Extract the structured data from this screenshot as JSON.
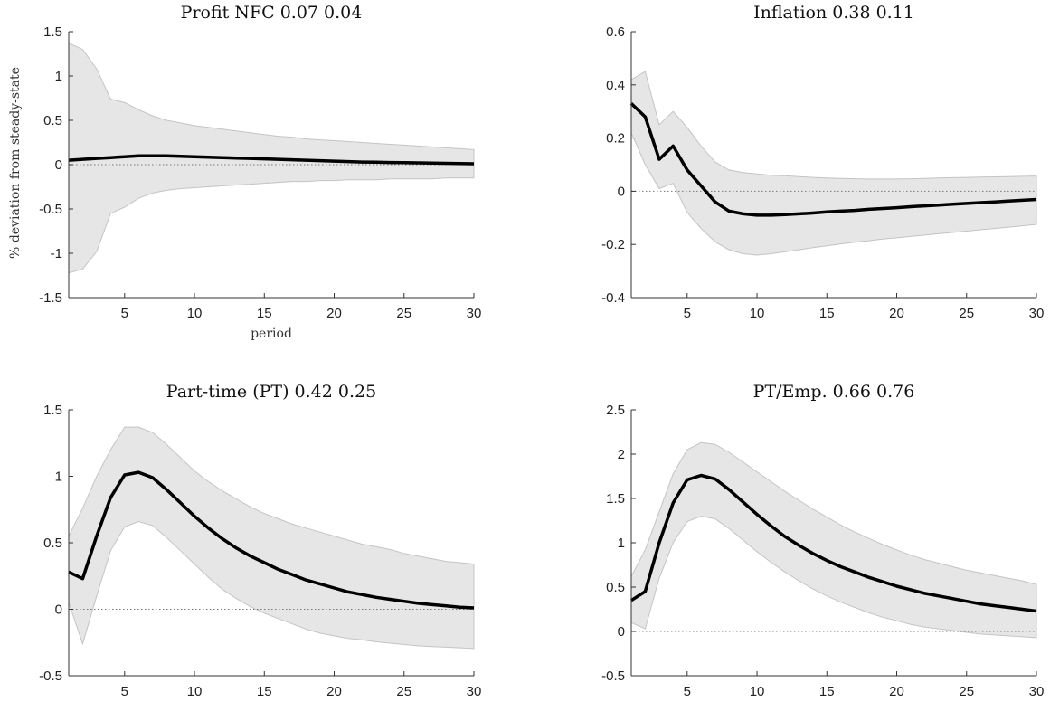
{
  "chart_data": [
    {
      "type": "area",
      "title": "Profit NFC 0.07 0.04",
      "ylabel": "% deviation from steady-state",
      "xlabel": "period",
      "xlim": [
        1,
        30
      ],
      "ylim": [
        -1.5,
        1.5
      ],
      "xticks": [
        5,
        10,
        15,
        20,
        25,
        30
      ],
      "yticks": [
        -1.5,
        -1,
        -0.5,
        0,
        0.5,
        1,
        1.5
      ],
      "xtick_labels": [
        "5",
        "10",
        "15",
        "20",
        "25",
        "30"
      ],
      "ytick_labels": [
        "-1.5",
        "-1",
        "-0.5",
        "0",
        "0.5",
        "1",
        "1.5"
      ],
      "x": [
        1,
        2,
        3,
        4,
        5,
        6,
        7,
        8,
        9,
        10,
        11,
        12,
        13,
        14,
        15,
        16,
        17,
        18,
        19,
        20,
        21,
        22,
        23,
        24,
        25,
        26,
        27,
        28,
        29,
        30
      ],
      "median": [
        0.05,
        0.06,
        0.07,
        0.08,
        0.09,
        0.1,
        0.1,
        0.1,
        0.095,
        0.09,
        0.085,
        0.08,
        0.075,
        0.07,
        0.065,
        0.06,
        0.055,
        0.05,
        0.045,
        0.04,
        0.035,
        0.03,
        0.028,
        0.025,
        0.022,
        0.02,
        0.018,
        0.015,
        0.012,
        0.01
      ],
      "upper": [
        1.37,
        1.3,
        1.08,
        0.74,
        0.7,
        0.62,
        0.55,
        0.5,
        0.47,
        0.44,
        0.42,
        0.4,
        0.38,
        0.36,
        0.34,
        0.32,
        0.31,
        0.29,
        0.28,
        0.27,
        0.26,
        0.25,
        0.24,
        0.23,
        0.22,
        0.21,
        0.2,
        0.19,
        0.18,
        0.17
      ],
      "lower": [
        -1.22,
        -1.18,
        -0.98,
        -0.55,
        -0.48,
        -0.38,
        -0.32,
        -0.29,
        -0.27,
        -0.26,
        -0.25,
        -0.24,
        -0.23,
        -0.22,
        -0.21,
        -0.2,
        -0.19,
        -0.19,
        -0.18,
        -0.18,
        -0.17,
        -0.17,
        -0.17,
        -0.16,
        -0.16,
        -0.16,
        -0.16,
        -0.15,
        -0.15,
        -0.15
      ]
    },
    {
      "type": "area",
      "title": "Inflation 0.38 0.11",
      "ylabel": "",
      "xlabel": "",
      "xlim": [
        1,
        30
      ],
      "ylim": [
        -0.4,
        0.6
      ],
      "xticks": [
        5,
        10,
        15,
        20,
        25,
        30
      ],
      "yticks": [
        -0.4,
        -0.2,
        0,
        0.2,
        0.4,
        0.6
      ],
      "xtick_labels": [
        "5",
        "10",
        "15",
        "20",
        "25",
        "30"
      ],
      "ytick_labels": [
        "-0.4",
        "-0.2",
        "0",
        "0.2",
        "0.4",
        "0.6"
      ],
      "x": [
        1,
        2,
        3,
        4,
        5,
        6,
        7,
        8,
        9,
        10,
        11,
        12,
        13,
        14,
        15,
        16,
        17,
        18,
        19,
        20,
        21,
        22,
        23,
        24,
        25,
        26,
        27,
        28,
        29,
        30
      ],
      "median": [
        0.33,
        0.28,
        0.12,
        0.17,
        0.08,
        0.02,
        -0.04,
        -0.075,
        -0.085,
        -0.09,
        -0.09,
        -0.088,
        -0.085,
        -0.082,
        -0.078,
        -0.075,
        -0.072,
        -0.068,
        -0.065,
        -0.062,
        -0.058,
        -0.055,
        -0.052,
        -0.049,
        -0.046,
        -0.043,
        -0.04,
        -0.037,
        -0.034,
        -0.031
      ],
      "upper": [
        0.42,
        0.45,
        0.25,
        0.3,
        0.24,
        0.17,
        0.11,
        0.08,
        0.07,
        0.065,
        0.06,
        0.058,
        0.055,
        0.052,
        0.05,
        0.048,
        0.047,
        0.046,
        0.046,
        0.046,
        0.047,
        0.048,
        0.05,
        0.051,
        0.052,
        0.053,
        0.054,
        0.055,
        0.056,
        0.057
      ],
      "lower": [
        0.22,
        0.1,
        0.01,
        0.03,
        -0.08,
        -0.14,
        -0.19,
        -0.22,
        -0.235,
        -0.24,
        -0.235,
        -0.228,
        -0.22,
        -0.212,
        -0.205,
        -0.198,
        -0.192,
        -0.186,
        -0.18,
        -0.175,
        -0.17,
        -0.165,
        -0.16,
        -0.155,
        -0.15,
        -0.145,
        -0.14,
        -0.135,
        -0.13,
        -0.125
      ]
    },
    {
      "type": "area",
      "title": "Part-time (PT) 0.42 0.25",
      "ylabel": "",
      "xlabel": "",
      "xlim": [
        1,
        30
      ],
      "ylim": [
        -0.5,
        1.5
      ],
      "xticks": [
        5,
        10,
        15,
        20,
        25,
        30
      ],
      "yticks": [
        -0.5,
        0,
        0.5,
        1,
        1.5
      ],
      "xtick_labels": [
        "5",
        "10",
        "15",
        "20",
        "25",
        "30"
      ],
      "ytick_labels": [
        "-0.5",
        "0",
        "0.5",
        "1",
        "1.5"
      ],
      "x": [
        1,
        2,
        3,
        4,
        5,
        6,
        7,
        8,
        9,
        10,
        11,
        12,
        13,
        14,
        15,
        16,
        17,
        18,
        19,
        20,
        21,
        22,
        23,
        24,
        25,
        26,
        27,
        28,
        29,
        30
      ],
      "median": [
        0.28,
        0.23,
        0.55,
        0.84,
        1.01,
        1.03,
        0.99,
        0.9,
        0.8,
        0.7,
        0.61,
        0.53,
        0.46,
        0.4,
        0.35,
        0.3,
        0.26,
        0.22,
        0.19,
        0.16,
        0.13,
        0.11,
        0.09,
        0.075,
        0.06,
        0.045,
        0.035,
        0.025,
        0.015,
        0.01
      ],
      "upper": [
        0.55,
        0.76,
        1.0,
        1.2,
        1.37,
        1.37,
        1.33,
        1.24,
        1.14,
        1.04,
        0.96,
        0.89,
        0.83,
        0.77,
        0.72,
        0.68,
        0.64,
        0.61,
        0.58,
        0.55,
        0.52,
        0.49,
        0.47,
        0.45,
        0.42,
        0.4,
        0.38,
        0.36,
        0.35,
        0.34
      ],
      "lower": [
        0.05,
        -0.26,
        0.1,
        0.44,
        0.62,
        0.66,
        0.63,
        0.54,
        0.44,
        0.34,
        0.24,
        0.15,
        0.08,
        0.02,
        -0.03,
        -0.07,
        -0.11,
        -0.15,
        -0.18,
        -0.2,
        -0.22,
        -0.23,
        -0.245,
        -0.255,
        -0.265,
        -0.275,
        -0.28,
        -0.285,
        -0.29,
        -0.295
      ]
    },
    {
      "type": "area",
      "title": "PT/Emp. 0.66 0.76",
      "ylabel": "",
      "xlabel": "",
      "xlim": [
        1,
        30
      ],
      "ylim": [
        -0.5,
        2.5
      ],
      "xticks": [
        5,
        10,
        15,
        20,
        25,
        30
      ],
      "yticks": [
        -0.5,
        0,
        0.5,
        1,
        1.5,
        2,
        2.5
      ],
      "xtick_labels": [
        "5",
        "10",
        "15",
        "20",
        "25",
        "30"
      ],
      "ytick_labels": [
        "-0.5",
        "0",
        "0.5",
        "1",
        "1.5",
        "2",
        "2.5"
      ],
      "x": [
        1,
        2,
        3,
        4,
        5,
        6,
        7,
        8,
        9,
        10,
        11,
        12,
        13,
        14,
        15,
        16,
        17,
        18,
        19,
        20,
        21,
        22,
        23,
        24,
        25,
        26,
        27,
        28,
        29,
        30
      ],
      "median": [
        0.35,
        0.45,
        1.0,
        1.45,
        1.71,
        1.76,
        1.72,
        1.6,
        1.46,
        1.32,
        1.19,
        1.07,
        0.97,
        0.88,
        0.8,
        0.73,
        0.67,
        0.61,
        0.56,
        0.51,
        0.47,
        0.43,
        0.4,
        0.37,
        0.34,
        0.31,
        0.29,
        0.27,
        0.25,
        0.23
      ],
      "upper": [
        0.62,
        0.92,
        1.35,
        1.78,
        2.05,
        2.13,
        2.11,
        2.02,
        1.91,
        1.8,
        1.69,
        1.58,
        1.48,
        1.38,
        1.29,
        1.2,
        1.12,
        1.05,
        0.98,
        0.92,
        0.86,
        0.81,
        0.77,
        0.73,
        0.69,
        0.66,
        0.63,
        0.6,
        0.57,
        0.53
      ],
      "lower": [
        0.1,
        0.03,
        0.6,
        1.0,
        1.24,
        1.3,
        1.27,
        1.16,
        1.03,
        0.9,
        0.78,
        0.67,
        0.57,
        0.48,
        0.4,
        0.33,
        0.27,
        0.21,
        0.16,
        0.12,
        0.08,
        0.05,
        0.03,
        0.01,
        -0.01,
        -0.03,
        -0.04,
        -0.05,
        -0.06,
        -0.07
      ]
    }
  ]
}
